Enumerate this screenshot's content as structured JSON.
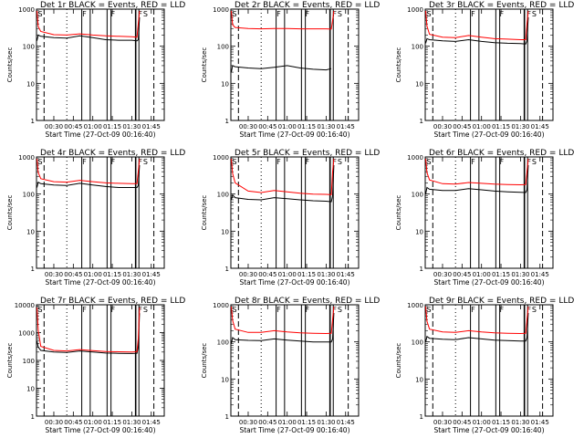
{
  "page": {
    "ylabel": "Counts/sec",
    "xlabel": "Start Time (27-Oct-09 00:16:40)"
  },
  "style": {
    "events_color": "#000000",
    "lld_color": "#ff0000"
  },
  "chart_data": [
    {
      "type": "line",
      "title": "Det 1r BLACK = Events, RED = LLD",
      "y_scale": "log",
      "ylim": [
        1,
        1000
      ],
      "xlim": [
        "00:16:40",
        "01:55:00"
      ],
      "x_ticks": [
        "00:30",
        "00:45",
        "01:00",
        "01:15",
        "01:30",
        "01:45"
      ],
      "y_ticks": [
        "1",
        "10",
        "100",
        "1000"
      ],
      "marker_labels": [
        "S",
        "F",
        "F",
        "F",
        "S"
      ],
      "series": [
        {
          "role": "events",
          "x": [
            "00:17",
            "00:18",
            "00:20",
            "00:30",
            "00:40",
            "00:50",
            "01:00",
            "01:10",
            "01:20",
            "01:30",
            "01:34",
            "01:35",
            "01:36"
          ],
          "values": [
            140,
            200,
            185,
            170,
            165,
            190,
            170,
            150,
            145,
            145,
            140,
            150,
            600
          ]
        },
        {
          "role": "lld",
          "x": [
            "00:17",
            "00:18",
            "00:20",
            "00:30",
            "00:40",
            "00:50",
            "01:00",
            "01:10",
            "01:20",
            "01:30",
            "01:34",
            "01:35",
            "01:36"
          ],
          "values": [
            900,
            340,
            250,
            205,
            200,
            215,
            200,
            190,
            185,
            180,
            175,
            400,
            900
          ]
        }
      ]
    },
    {
      "type": "line",
      "title": "Det 2r BLACK = Events, RED = LLD",
      "y_scale": "log",
      "ylim": [
        1,
        1000
      ],
      "xlim": [
        "00:16:40",
        "01:55:00"
      ],
      "x_ticks": [
        "00:30",
        "00:45",
        "01:00",
        "01:15",
        "01:30",
        "01:45"
      ],
      "y_ticks": [
        "1",
        "10",
        "100",
        "1000"
      ],
      "marker_labels": [
        "S",
        "F",
        "F",
        "F",
        "S"
      ],
      "series": [
        {
          "role": "events",
          "x": [
            "00:17",
            "00:18",
            "00:20",
            "00:30",
            "00:40",
            "00:50",
            "01:00",
            "01:10",
            "01:20",
            "01:30",
            "01:34"
          ],
          "values": [
            20,
            30,
            28,
            26,
            25,
            27,
            30,
            26,
            24,
            23,
            25
          ]
        },
        {
          "role": "lld",
          "x": [
            "00:17",
            "00:18",
            "00:20",
            "00:30",
            "00:40",
            "00:50",
            "01:00",
            "01:10",
            "01:20",
            "01:30",
            "01:34",
            "01:35",
            "01:36"
          ],
          "values": [
            900,
            380,
            320,
            300,
            295,
            300,
            300,
            295,
            295,
            295,
            290,
            500,
            900
          ]
        }
      ]
    },
    {
      "type": "line",
      "title": "Det 3r BLACK = Events, RED = LLD",
      "y_scale": "log",
      "ylim": [
        1,
        1000
      ],
      "xlim": [
        "00:16:40",
        "01:55:00"
      ],
      "x_ticks": [
        "00:30",
        "00:45",
        "01:00",
        "01:15",
        "01:30",
        "01:45"
      ],
      "y_ticks": [
        "1",
        "10",
        "100",
        "1000"
      ],
      "marker_labels": [
        "S",
        "F",
        "F",
        "F",
        "S"
      ],
      "series": [
        {
          "role": "events",
          "x": [
            "00:17",
            "00:18",
            "00:20",
            "00:30",
            "00:40",
            "00:50",
            "01:00",
            "01:10",
            "01:20",
            "01:30",
            "01:34",
            "01:35",
            "01:36"
          ],
          "values": [
            120,
            160,
            150,
            140,
            135,
            150,
            135,
            125,
            120,
            118,
            115,
            140,
            600
          ]
        },
        {
          "role": "lld",
          "x": [
            "00:17",
            "00:18",
            "00:20",
            "00:30",
            "00:40",
            "00:50",
            "01:00",
            "01:10",
            "01:20",
            "01:30",
            "01:34",
            "01:35",
            "01:36"
          ],
          "values": [
            900,
            350,
            210,
            175,
            170,
            195,
            175,
            160,
            155,
            150,
            150,
            400,
            900
          ]
        }
      ]
    },
    {
      "type": "line",
      "title": "Det 4r BLACK = Events, RED = LLD",
      "y_scale": "log",
      "ylim": [
        1,
        1000
      ],
      "xlim": [
        "00:16:40",
        "01:55:00"
      ],
      "x_ticks": [
        "00:30",
        "00:45",
        "01:00",
        "01:15",
        "01:30",
        "01:45"
      ],
      "y_ticks": [
        "1",
        "10",
        "100",
        "1000"
      ],
      "marker_labels": [
        "S",
        "F",
        "F",
        "F",
        "S"
      ],
      "series": [
        {
          "role": "events",
          "x": [
            "00:17",
            "00:18",
            "00:20",
            "00:30",
            "00:40",
            "00:50",
            "01:00",
            "01:10",
            "01:20",
            "01:30",
            "01:34",
            "01:35",
            "01:36"
          ],
          "values": [
            150,
            210,
            190,
            175,
            170,
            195,
            175,
            160,
            150,
            150,
            150,
            170,
            600
          ]
        },
        {
          "role": "lld",
          "x": [
            "00:17",
            "00:18",
            "00:20",
            "00:30",
            "00:40",
            "00:50",
            "01:00",
            "01:10",
            "01:20",
            "01:30",
            "01:34",
            "01:35",
            "01:36"
          ],
          "values": [
            900,
            380,
            260,
            215,
            210,
            235,
            215,
            200,
            195,
            190,
            190,
            400,
            900
          ]
        }
      ]
    },
    {
      "type": "line",
      "title": "Det 5r BLACK = Events, RED = LLD",
      "y_scale": "log",
      "ylim": [
        1,
        1000
      ],
      "xlim": [
        "00:16:40",
        "01:55:00"
      ],
      "x_ticks": [
        "00:30",
        "00:45",
        "01:00",
        "01:15",
        "01:30",
        "01:45"
      ],
      "y_ticks": [
        "1",
        "10",
        "100",
        "1000"
      ],
      "marker_labels": [
        "S",
        "F",
        "F",
        "F",
        "S"
      ],
      "series": [
        {
          "role": "events",
          "x": [
            "00:17",
            "00:18",
            "00:20",
            "00:30",
            "00:40",
            "00:50",
            "01:00",
            "01:10",
            "01:20",
            "01:30",
            "01:34",
            "01:35",
            "01:36"
          ],
          "values": [
            70,
            95,
            80,
            72,
            70,
            80,
            75,
            70,
            66,
            64,
            62,
            90,
            600
          ]
        },
        {
          "role": "lld",
          "x": [
            "00:17",
            "00:18",
            "00:20",
            "00:30",
            "00:40",
            "00:50",
            "01:00",
            "01:10",
            "01:20",
            "01:30",
            "01:34",
            "01:35",
            "01:36"
          ],
          "values": [
            900,
            360,
            200,
            120,
            110,
            125,
            115,
            105,
            100,
            98,
            96,
            400,
            900
          ]
        }
      ]
    },
    {
      "type": "line",
      "title": "Det 6r BLACK = Events, RED = LLD",
      "y_scale": "log",
      "ylim": [
        1,
        1000
      ],
      "xlim": [
        "00:16:40",
        "01:55:00"
      ],
      "x_ticks": [
        "00:30",
        "00:45",
        "01:00",
        "01:15",
        "01:30",
        "01:45"
      ],
      "y_ticks": [
        "1",
        "10",
        "100",
        "1000"
      ],
      "marker_labels": [
        "S",
        "F",
        "F",
        "F",
        "S"
      ],
      "series": [
        {
          "role": "events",
          "x": [
            "00:17",
            "00:18",
            "00:20",
            "00:30",
            "00:40",
            "00:50",
            "01:00",
            "01:10",
            "01:20",
            "01:30",
            "01:34",
            "01:35",
            "01:36"
          ],
          "values": [
            100,
            150,
            135,
            125,
            125,
            140,
            130,
            120,
            115,
            112,
            110,
            130,
            600
          ]
        },
        {
          "role": "lld",
          "x": [
            "00:17",
            "00:18",
            "00:20",
            "00:30",
            "00:40",
            "00:50",
            "01:00",
            "01:10",
            "01:20",
            "01:30",
            "01:34",
            "01:35",
            "01:36"
          ],
          "values": [
            900,
            380,
            240,
            190,
            185,
            205,
            195,
            185,
            180,
            178,
            180,
            400,
            900
          ]
        }
      ]
    },
    {
      "type": "line",
      "title": "Det 7r BLACK = Events, RED = LLD",
      "y_scale": "log",
      "ylim": [
        1,
        10000
      ],
      "xlim": [
        "00:16:40",
        "01:55:00"
      ],
      "x_ticks": [
        "00:30",
        "00:45",
        "01:00",
        "01:15",
        "01:30",
        "01:45"
      ],
      "y_ticks": [
        "1",
        "10",
        "100",
        "1000",
        "10000"
      ],
      "marker_labels": [
        "S",
        "F",
        "F",
        "F",
        "S"
      ],
      "series": [
        {
          "role": "events",
          "x": [
            "00:17",
            "00:18",
            "00:20",
            "00:30",
            "00:40",
            "00:50",
            "01:00",
            "01:10",
            "01:20",
            "01:30",
            "01:34",
            "01:35",
            "01:36"
          ],
          "values": [
            500,
            300,
            230,
            200,
            195,
            220,
            200,
            185,
            180,
            178,
            180,
            300,
            5000
          ]
        },
        {
          "role": "lld",
          "x": [
            "00:17",
            "00:18",
            "00:20",
            "00:30",
            "00:40",
            "00:50",
            "01:00",
            "01:10",
            "01:20",
            "01:30",
            "01:34",
            "01:35",
            "01:36"
          ],
          "values": [
            8000,
            1200,
            320,
            230,
            220,
            245,
            225,
            210,
            205,
            200,
            205,
            600,
            8000
          ]
        }
      ]
    },
    {
      "type": "line",
      "title": "Det 8r BLACK = Events, RED = LLD",
      "y_scale": "log",
      "ylim": [
        1,
        1000
      ],
      "xlim": [
        "00:16:40",
        "01:55:00"
      ],
      "x_ticks": [
        "00:30",
        "00:45",
        "01:00",
        "01:15",
        "01:30",
        "01:45"
      ],
      "y_ticks": [
        "1",
        "10",
        "100",
        "1000"
      ],
      "marker_labels": [
        "S",
        "F",
        "F",
        "F",
        "S"
      ],
      "series": [
        {
          "role": "events",
          "x": [
            "00:17",
            "00:18",
            "00:20",
            "00:30",
            "00:40",
            "00:50",
            "01:00",
            "01:10",
            "01:20",
            "01:30",
            "01:34",
            "01:35",
            "01:36"
          ],
          "values": [
            90,
            130,
            115,
            110,
            108,
            120,
            112,
            105,
            100,
            100,
            100,
            120,
            600
          ]
        },
        {
          "role": "lld",
          "x": [
            "00:17",
            "00:18",
            "00:20",
            "00:30",
            "00:40",
            "00:50",
            "01:00",
            "01:10",
            "01:20",
            "01:30",
            "01:34",
            "01:35",
            "01:36"
          ],
          "values": [
            900,
            380,
            220,
            180,
            180,
            200,
            185,
            175,
            170,
            168,
            170,
            400,
            900
          ]
        }
      ]
    },
    {
      "type": "line",
      "title": "Det 9r BLACK = Events, RED = LLD",
      "y_scale": "log",
      "ylim": [
        1,
        1000
      ],
      "xlim": [
        "00:16:40",
        "01:55:00"
      ],
      "x_ticks": [
        "00:30",
        "00:45",
        "01:00",
        "01:15",
        "01:30",
        "01:45"
      ],
      "y_ticks": [
        "1",
        "10",
        "100",
        "1000"
      ],
      "marker_labels": [
        "S",
        "F",
        "F",
        "F",
        "S"
      ],
      "series": [
        {
          "role": "events",
          "x": [
            "00:17",
            "00:18",
            "00:20",
            "00:30",
            "00:40",
            "00:50",
            "01:00",
            "01:10",
            "01:20",
            "01:30",
            "01:34",
            "01:35",
            "01:36"
          ],
          "values": [
            100,
            140,
            125,
            118,
            115,
            130,
            120,
            112,
            108,
            105,
            105,
            130,
            600
          ]
        },
        {
          "role": "lld",
          "x": [
            "00:17",
            "00:18",
            "00:20",
            "00:30",
            "00:40",
            "00:50",
            "01:00",
            "01:10",
            "01:20",
            "01:30",
            "01:34",
            "01:35",
            "01:36"
          ],
          "values": [
            900,
            360,
            220,
            185,
            180,
            200,
            185,
            175,
            170,
            168,
            170,
            400,
            900
          ]
        }
      ]
    }
  ]
}
